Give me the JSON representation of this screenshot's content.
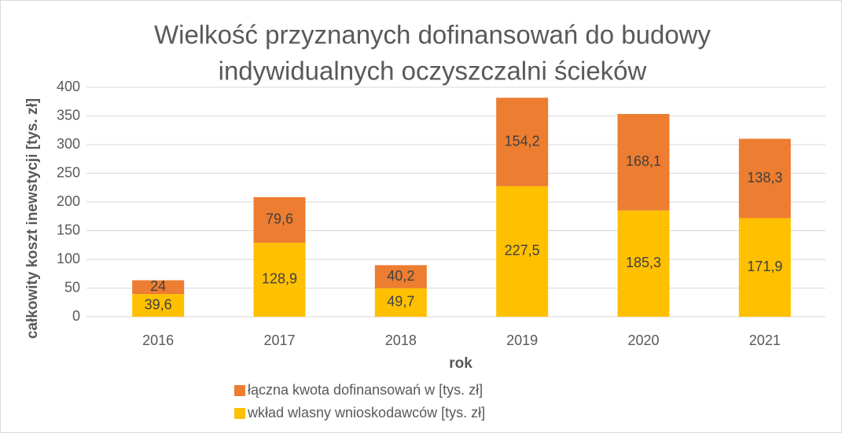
{
  "chart_data": {
    "type": "stacked_bar",
    "title": [
      "Wielkość przyznanych dofinansowań do budowy",
      "indywidualnych oczyszczalni ścieków"
    ],
    "x_label": "rok",
    "y_label": "całkowity koszt inewstycji [tys. zł]",
    "categories": [
      "2016",
      "2017",
      "2018",
      "2019",
      "2020",
      "2021"
    ],
    "series": [
      {
        "name": "wkład wlasny wnioskodawców [tys. zł]",
        "color": "#FFC000",
        "values": [
          39.6,
          128.9,
          49.7,
          227.5,
          185.3,
          171.9
        ],
        "value_labels": [
          "39,6",
          "128,9",
          "49,7",
          "227,5",
          "185,3",
          "171,9"
        ]
      },
      {
        "name": "łączna kwota dofinansowań w [tys. zł]",
        "color": "#ED7D31",
        "values": [
          24,
          79.6,
          40.2,
          154.2,
          168.1,
          138.3
        ],
        "value_labels": [
          "24",
          "79,6",
          "40,2",
          "154,2",
          "168,1",
          "138,3"
        ]
      }
    ],
    "ylim": [
      0,
      400
    ],
    "yticks": [
      0,
      50,
      100,
      150,
      200,
      250,
      300,
      350,
      400
    ],
    "grid": true
  }
}
